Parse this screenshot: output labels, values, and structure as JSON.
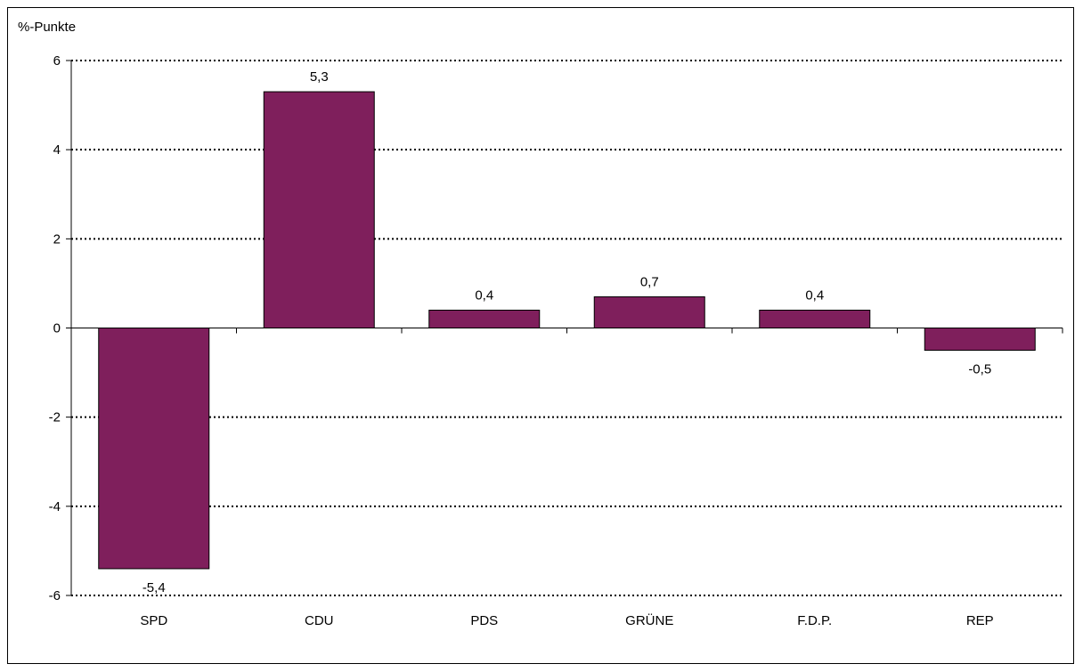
{
  "chart_data": {
    "type": "bar",
    "title": "",
    "xlabel": "",
    "ylabel": "%-Punkte",
    "categories": [
      "SPD",
      "CDU",
      "PDS",
      "GRÜNE",
      "F.D.P.",
      "REP"
    ],
    "values": [
      -5.4,
      5.3,
      0.4,
      0.7,
      0.4,
      -0.5
    ],
    "value_labels": [
      "-5,4",
      "5,3",
      "0,4",
      "0,7",
      "0,4",
      "-0,5"
    ],
    "ylim": [
      -6,
      6
    ],
    "yticks": [
      -6,
      -4,
      -2,
      0,
      2,
      4,
      6
    ],
    "ytick_labels": [
      "-6",
      "-4",
      "-2",
      "0",
      "2",
      "4",
      "6"
    ],
    "grid": true,
    "grid_style": "dotted",
    "legend": "none",
    "bar_color": "#7f1f5c",
    "bar_edge_color": "#000000"
  }
}
